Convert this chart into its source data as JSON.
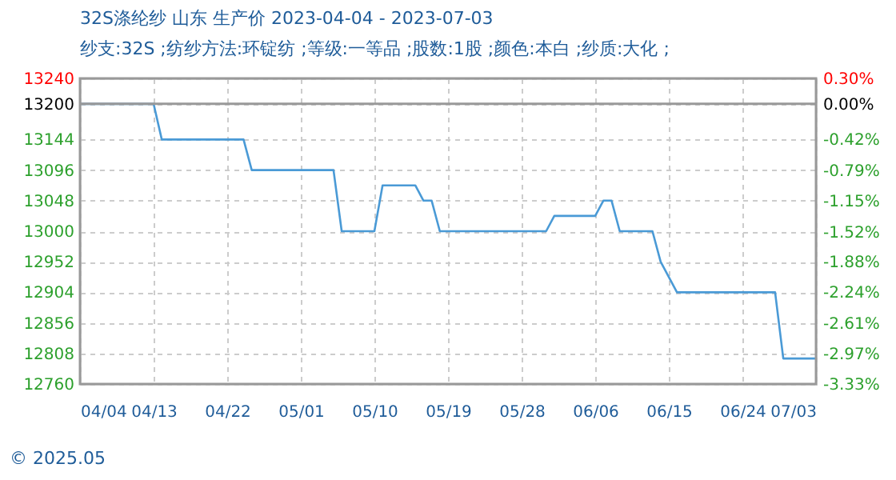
{
  "chart_data": {
    "type": "line",
    "title": "32S涤纶纱 山东 生产价 2023-04-04 - 2023-07-03",
    "subtitle": "纱支:32S ;纺纱方法:环锭纺 ;等级:一等品 ;股数:1股 ;颜色:本白 ;纱质:大化 ;",
    "x": [
      "2023-04-04",
      "2023-04-13",
      "2023-04-14",
      "2023-04-24",
      "2023-04-25",
      "2023-05-05",
      "2023-05-06",
      "2023-05-10",
      "2023-05-11",
      "2023-05-15",
      "2023-05-16",
      "2023-05-17",
      "2023-05-18",
      "2023-05-31",
      "2023-06-01",
      "2023-06-06",
      "2023-06-07",
      "2023-06-08",
      "2023-06-09",
      "2023-06-13",
      "2023-06-14",
      "2023-06-16",
      "2023-06-28",
      "2023-06-29",
      "2023-07-03"
    ],
    "series": [
      {
        "color": "#4a9ad6",
        "values": [
          13200,
          13200,
          13144,
          13144,
          13096,
          13096,
          13000,
          13000,
          13072,
          13072,
          13048,
          13048,
          13000,
          13000,
          13024,
          13024,
          13048,
          13048,
          13000,
          13000,
          12952,
          12904,
          12904,
          12800,
          12800
        ]
      }
    ],
    "xlim": [
      "2023-04-04",
      "2023-07-03"
    ],
    "xticks": [
      {
        "value": "2023-04-04",
        "label": "04/04"
      },
      {
        "value": "2023-04-13",
        "label": "04/13"
      },
      {
        "value": "2023-04-22",
        "label": "04/22"
      },
      {
        "value": "2023-05-01",
        "label": "05/01"
      },
      {
        "value": "2023-05-10",
        "label": "05/10"
      },
      {
        "value": "2023-05-19",
        "label": "05/19"
      },
      {
        "value": "2023-05-28",
        "label": "05/28"
      },
      {
        "value": "2023-06-06",
        "label": "06/06"
      },
      {
        "value": "2023-06-15",
        "label": "06/15"
      },
      {
        "value": "2023-06-24",
        "label": "06/24"
      },
      {
        "value": "2023-07-03",
        "label": "07/03"
      }
    ],
    "ylim": [
      12760,
      13240
    ],
    "yticks": [
      12760,
      12808,
      12856,
      12904,
      12952,
      13000,
      13048,
      13096,
      13144,
      13200,
      13240
    ],
    "y2lim": [
      -3.33,
      0.3
    ],
    "y2ticks": [
      {
        "value": -3.33,
        "label": "-3.33%"
      },
      {
        "value": -2.97,
        "label": "-2.97%"
      },
      {
        "value": -2.61,
        "label": "-2.61%"
      },
      {
        "value": -2.24,
        "label": "-2.24%"
      },
      {
        "value": -1.88,
        "label": "-1.88%"
      },
      {
        "value": -1.52,
        "label": "-1.52%"
      },
      {
        "value": -1.15,
        "label": "-1.15%"
      },
      {
        "value": -0.79,
        "label": "-0.79%"
      },
      {
        "value": -0.42,
        "label": "-0.42%"
      },
      {
        "value": 0,
        "label": "0.00%"
      },
      {
        "value": 0.3,
        "label": "0.30%"
      }
    ],
    "ref_lines": [
      {
        "axis": "y",
        "value": 13200,
        "color": "#999999"
      }
    ],
    "grid": true,
    "marker": "none",
    "line_style": "solid",
    "annotations": [
      "© 2025.05"
    ]
  }
}
